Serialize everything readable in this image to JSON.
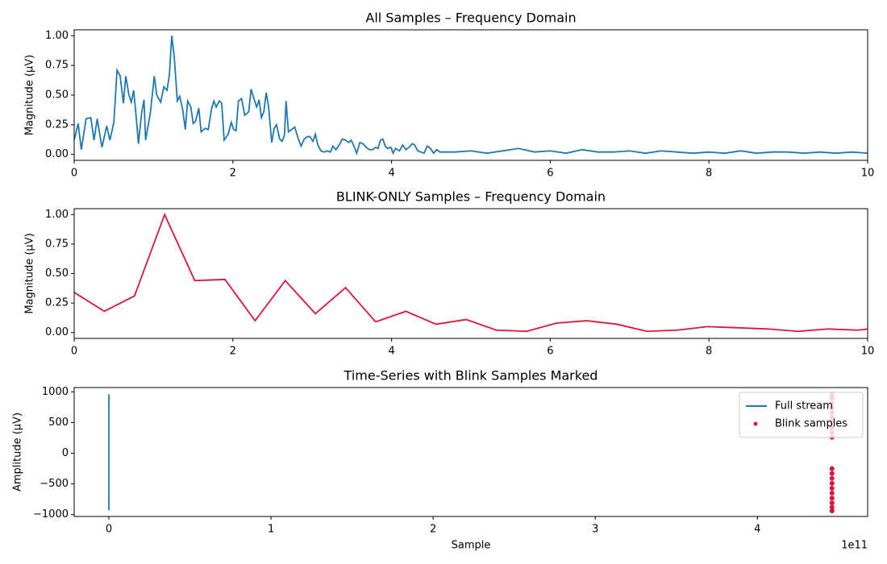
{
  "chart_data": [
    {
      "type": "line",
      "title": "All Samples – Frequency Domain",
      "y_label": "Magnitude (µV)",
      "x": [
        0,
        0.05,
        0.09,
        0.15,
        0.21,
        0.25,
        0.29,
        0.35,
        0.41,
        0.45,
        0.5,
        0.54,
        0.58,
        0.62,
        0.65,
        0.69,
        0.72,
        0.75,
        0.79,
        0.81,
        0.85,
        0.88,
        0.9,
        0.96,
        1.01,
        1.04,
        1.09,
        1.13,
        1.17,
        1.2,
        1.23,
        1.26,
        1.3,
        1.33,
        1.37,
        1.4,
        1.43,
        1.47,
        1.5,
        1.53,
        1.57,
        1.6,
        1.65,
        1.69,
        1.73,
        1.76,
        1.79,
        1.83,
        1.86,
        1.89,
        1.94,
        1.98,
        2.01,
        2.04,
        2.07,
        2.11,
        2.15,
        2.2,
        2.23,
        2.27,
        2.3,
        2.33,
        2.36,
        2.39,
        2.42,
        2.45,
        2.49,
        2.52,
        2.55,
        2.59,
        2.62,
        2.65,
        2.67,
        2.7,
        2.74,
        2.78,
        2.82,
        2.86,
        2.9,
        2.94,
        2.97,
        3.01,
        3.04,
        3.07,
        3.11,
        3.15,
        3.19,
        3.23,
        3.26,
        3.3,
        3.34,
        3.38,
        3.42,
        3.46,
        3.49,
        3.52,
        3.56,
        3.6,
        3.64,
        3.68,
        3.72,
        3.76,
        3.8,
        3.83,
        3.86,
        3.89,
        3.92,
        3.95,
        3.99,
        4.02,
        4.05,
        4.1,
        4.14,
        4.18,
        4.22,
        4.26,
        4.29,
        4.33,
        4.37,
        4.41,
        4.45,
        4.49,
        4.53,
        4.57,
        4.61,
        4.8,
        5.0,
        5.2,
        5.4,
        5.6,
        5.8,
        6.0,
        6.2,
        6.4,
        6.6,
        6.8,
        7.0,
        7.2,
        7.4,
        7.6,
        7.8,
        8.0,
        8.2,
        8.4,
        8.6,
        8.8,
        9.0,
        9.2,
        9.4,
        9.6,
        9.8,
        10.0
      ],
      "series": [
        {
          "color": "#1f77b4",
          "values": [
            0.12,
            0.26,
            0.04,
            0.3,
            0.31,
            0.12,
            0.3,
            0.06,
            0.24,
            0.12,
            0.27,
            0.71,
            0.66,
            0.43,
            0.66,
            0.5,
            0.44,
            0.54,
            0.25,
            0.09,
            0.35,
            0.46,
            0.12,
            0.35,
            0.66,
            0.5,
            0.44,
            0.57,
            0.54,
            0.67,
            1.0,
            0.83,
            0.45,
            0.49,
            0.37,
            0.21,
            0.45,
            0.4,
            0.26,
            0.28,
            0.39,
            0.19,
            0.22,
            0.21,
            0.38,
            0.45,
            0.4,
            0.45,
            0.43,
            0.12,
            0.17,
            0.27,
            0.21,
            0.2,
            0.45,
            0.47,
            0.33,
            0.36,
            0.55,
            0.46,
            0.4,
            0.46,
            0.31,
            0.36,
            0.52,
            0.4,
            0.1,
            0.22,
            0.25,
            0.13,
            0.11,
            0.16,
            0.45,
            0.19,
            0.21,
            0.23,
            0.14,
            0.07,
            0.13,
            0.15,
            0.15,
            0.11,
            0.17,
            0.08,
            0.03,
            0.02,
            0.03,
            0.02,
            0.07,
            0.04,
            0.08,
            0.13,
            0.12,
            0.1,
            0.12,
            0.08,
            0.01,
            0.1,
            0.09,
            0.06,
            0.04,
            0.04,
            0.06,
            0.05,
            0.12,
            0.13,
            0.07,
            0.05,
            0.06,
            0.01,
            0.05,
            0.03,
            0.08,
            0.04,
            0.06,
            0.09,
            0.08,
            0.03,
            0.02,
            0.01,
            0.07,
            0.05,
            0.01,
            0.04,
            0.02,
            0.02,
            0.03,
            0.01,
            0.03,
            0.05,
            0.02,
            0.03,
            0.01,
            0.04,
            0.02,
            0.02,
            0.03,
            0.01,
            0.03,
            0.02,
            0.01,
            0.02,
            0.01,
            0.03,
            0.01,
            0.02,
            0.02,
            0.01,
            0.02,
            0.01,
            0.02,
            0.01
          ]
        }
      ],
      "xlim": [
        0,
        10
      ],
      "xticks": [
        0,
        2,
        4,
        6,
        8,
        10
      ],
      "ylim": [
        -0.05,
        1.05
      ],
      "yticks": [
        {
          "value": 0,
          "label": "0.00"
        },
        {
          "value": 0.25,
          "label": "0.25"
        },
        {
          "value": 0.5,
          "label": "0.50"
        },
        {
          "value": 0.75,
          "label": "0.75"
        },
        {
          "value": 1,
          "label": "1.00"
        }
      ]
    },
    {
      "type": "line",
      "title": "BLINK-ONLY Samples – Frequency Domain",
      "y_label": "Magnitude (µV)",
      "x": [
        0,
        0.38,
        0.76,
        1.14,
        1.52,
        1.9,
        2.28,
        2.66,
        3.04,
        3.42,
        3.8,
        4.18,
        4.56,
        4.94,
        5.32,
        5.7,
        6.08,
        6.46,
        6.84,
        7.22,
        7.6,
        7.98,
        8.36,
        8.74,
        9.12,
        9.5,
        9.88,
        10.26
      ],
      "series": [
        {
          "color": "#dc143c",
          "values": [
            0.34,
            0.18,
            0.31,
            1.0,
            0.44,
            0.45,
            0.1,
            0.44,
            0.16,
            0.38,
            0.09,
            0.18,
            0.07,
            0.11,
            0.02,
            0.01,
            0.08,
            0.1,
            0.07,
            0.01,
            0.02,
            0.05,
            0.04,
            0.03,
            0.01,
            0.03,
            0.02,
            0.05
          ]
        }
      ],
      "xlim": [
        0,
        10
      ],
      "xticks": [
        0,
        2,
        4,
        6,
        8,
        10
      ],
      "ylim": [
        -0.05,
        1.05
      ],
      "yticks": [
        {
          "value": 0,
          "label": "0.00"
        },
        {
          "value": 0.25,
          "label": "0.25"
        },
        {
          "value": 0.5,
          "label": "0.50"
        },
        {
          "value": 0.75,
          "label": "0.75"
        },
        {
          "value": 1,
          "label": "1.00"
        }
      ]
    },
    {
      "type": "line",
      "title": "Time-Series with Blink Samples Marked",
      "x_label": "Sample",
      "y_label": "Amplitude (µV)",
      "x_offset_label": "1e11",
      "legend": "upper right",
      "series": [
        {
          "name": "Full stream",
          "type": "line",
          "color": "#1f77b4",
          "x": [
            0,
            0,
            0,
            0
          ],
          "values": [
            0,
            960,
            -930,
            10
          ]
        },
        {
          "name": "Blink samples",
          "type": "scatter",
          "color": "#dc143c",
          "x": [
            446000000000,
            446000000000,
            446000000000,
            446000000000,
            446000000000,
            446000000000,
            446000000000,
            446000000000,
            446000000000,
            446000000000,
            446000000000,
            446000000000,
            446000000000,
            446000000000,
            446000000000,
            446000000000,
            446000000000,
            446000000000,
            446000000000,
            446000000000
          ],
          "values": [
            960,
            900,
            820,
            740,
            660,
            580,
            500,
            420,
            340,
            260,
            -250,
            -330,
            -410,
            -490,
            -570,
            -650,
            -730,
            -810,
            -880,
            -940
          ]
        }
      ],
      "xlim": [
        -21400000000,
        468000000000
      ],
      "xticks": [
        {
          "value": 0,
          "label": "0"
        },
        {
          "value": 100000000000,
          "label": "1"
        },
        {
          "value": 200000000000,
          "label": "2"
        },
        {
          "value": 300000000000,
          "label": "3"
        },
        {
          "value": 400000000000,
          "label": "4"
        }
      ],
      "ylim": [
        -1030,
        1070
      ],
      "yticks": [
        {
          "value": -1000,
          "label": "−1000"
        },
        {
          "value": -500,
          "label": "−500"
        },
        0,
        500,
        1000
      ]
    }
  ]
}
